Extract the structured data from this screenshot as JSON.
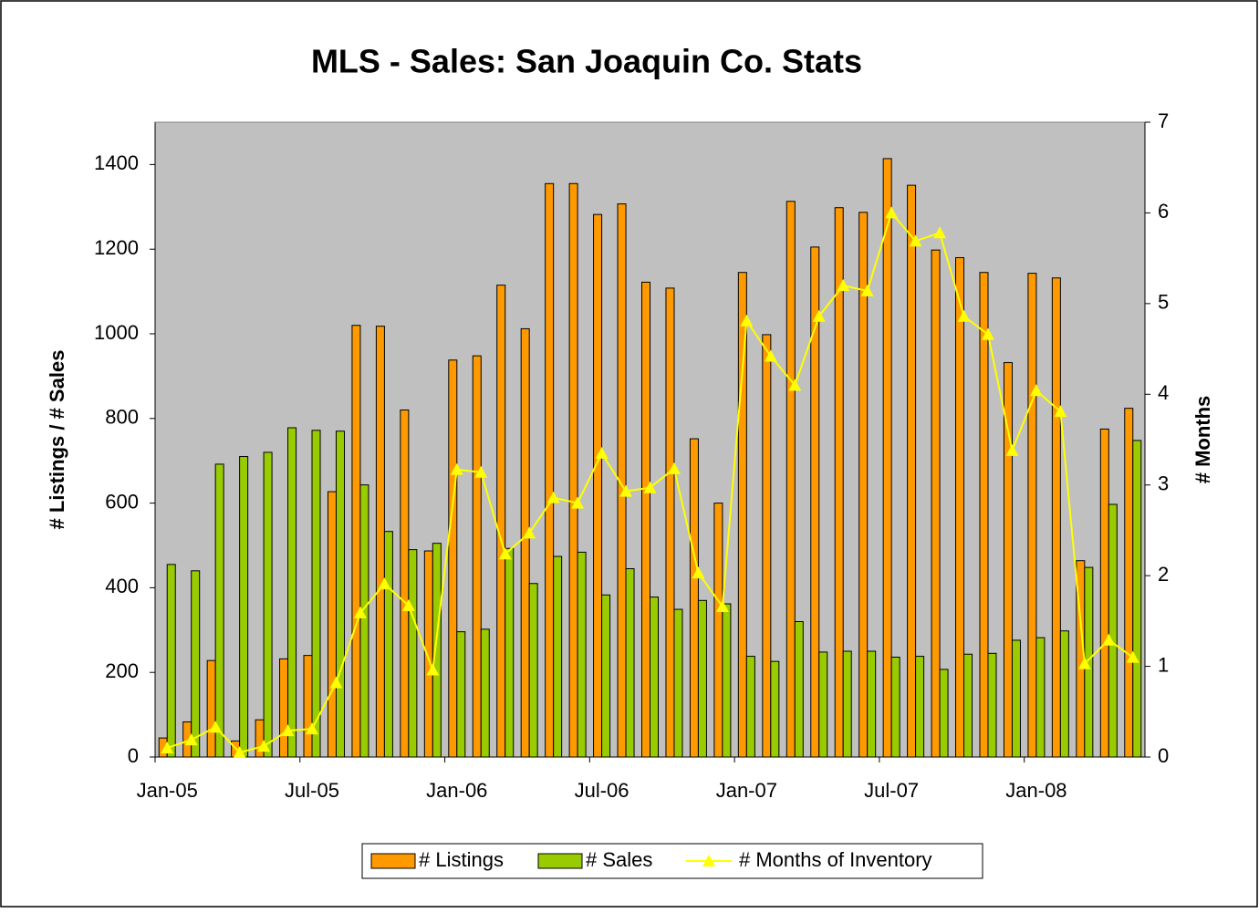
{
  "chart_data": {
    "type": "bar-line",
    "title": "MLS - Sales: San Joaquin Co. Stats",
    "y_label": "# Listings / # Sales",
    "y2_label": "# Months",
    "categories": [
      "Jan-05",
      null,
      null,
      null,
      null,
      null,
      "Jul-05",
      null,
      null,
      null,
      null,
      null,
      "Jan-06",
      null,
      null,
      null,
      null,
      null,
      "Jul-06",
      null,
      null,
      null,
      null,
      null,
      "Jan-07",
      null,
      null,
      null,
      null,
      null,
      "Jul-07",
      null,
      null,
      null,
      null,
      null,
      "Jan-08",
      null,
      null,
      null,
      null
    ],
    "series": [
      {
        "name": "# Listings",
        "type": "bar",
        "color": "#ff9900",
        "values": [
          45,
          83,
          228,
          38,
          88,
          232,
          240,
          627,
          1020,
          1018,
          820,
          487,
          938,
          948,
          1115,
          1012,
          1355,
          1355,
          1282,
          1307,
          1122,
          1108,
          752,
          600,
          1145,
          998,
          1313,
          1205,
          1298,
          1287,
          1414,
          1351,
          1198,
          1180,
          1145,
          932,
          1143,
          1132,
          464,
          775,
          824
        ]
      },
      {
        "name": "# Sales",
        "type": "bar",
        "color": "#99cc00",
        "values": [
          455,
          440,
          692,
          710,
          720,
          778,
          772,
          770,
          643,
          533,
          490,
          505,
          296,
          302,
          493,
          410,
          474,
          484,
          383,
          445,
          378,
          349,
          370,
          362,
          238,
          226,
          320,
          248,
          250,
          250,
          236,
          238,
          207,
          243,
          245,
          276,
          282,
          298,
          448,
          597,
          748
        ]
      },
      {
        "name": "# Months of Inventory",
        "type": "line",
        "axis": "y2",
        "color": "#ffff00",
        "values": [
          0.1,
          0.19,
          0.33,
          0.05,
          0.12,
          0.29,
          0.31,
          0.82,
          1.59,
          1.91,
          1.67,
          0.96,
          3.17,
          3.14,
          2.24,
          2.47,
          2.86,
          2.8,
          3.35,
          2.93,
          2.97,
          3.18,
          2.03,
          1.66,
          4.81,
          4.42,
          4.1,
          4.86,
          5.2,
          5.14,
          6.0,
          5.69,
          5.78,
          4.86,
          4.66,
          3.38,
          4.04,
          3.81,
          1.03,
          1.29,
          1.1
        ]
      }
    ],
    "ylim": [
      0,
      1500
    ],
    "yticks": [
      0,
      200,
      400,
      600,
      800,
      1000,
      1200,
      1400
    ],
    "y2lim": [
      0,
      7
    ],
    "y2ticks": [
      0,
      1,
      2,
      3,
      4,
      5,
      6,
      7
    ],
    "legend": "bottom"
  }
}
